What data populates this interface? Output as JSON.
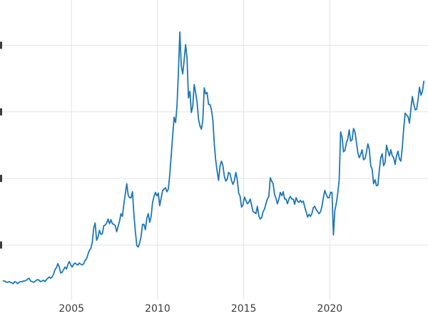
{
  "page": {
    "background": "#ffffff"
  },
  "chart_data": {
    "type": "line",
    "title": "",
    "xlabel": "",
    "ylabel": "",
    "legend": "none",
    "grid": true,
    "grid_color": "#e3e3e3",
    "line_color": "#1f77b4",
    "line_width": 1.8,
    "tick_label_color": "#3c3c3c",
    "xlim": [
      2000.85,
      2025.7
    ],
    "ylim": [
      1.8,
      46.8
    ],
    "x_ticks": [
      2005,
      2010,
      2015,
      2020
    ],
    "x_tick_labels": [
      "2005",
      "2010",
      "2015",
      "2020"
    ],
    "y_ticks": [
      10,
      20,
      30,
      40
    ],
    "y_tick_labels_cropped": true,
    "series": [
      {
        "name": "series",
        "frequency": "monthly",
        "start_year": 2001,
        "points_per_year": 12,
        "values": [
          4.6,
          4.6,
          4.4,
          4.4,
          4.5,
          4.4,
          4.3,
          4.2,
          4.5,
          4.4,
          4.2,
          4.4,
          4.5,
          4.5,
          4.6,
          4.6,
          4.7,
          4.9,
          5.0,
          4.6,
          4.5,
          4.4,
          4.5,
          4.7,
          4.8,
          4.7,
          4.5,
          4.6,
          4.7,
          4.5,
          4.8,
          5.0,
          5.2,
          5.0,
          5.2,
          5.6,
          6.3,
          6.6,
          7.2,
          6.7,
          5.8,
          5.9,
          6.3,
          6.7,
          6.4,
          7.1,
          7.5,
          7.0,
          6.7,
          7.1,
          7.3,
          7.1,
          7.0,
          7.3,
          7.1,
          7.0,
          7.2,
          7.7,
          7.9,
          8.6,
          9.2,
          9.5,
          10.4,
          12.6,
          13.3,
          10.7,
          11.2,
          12.2,
          11.6,
          11.7,
          12.9,
          13.0,
          13.3,
          13.9,
          13.2,
          13.8,
          13.2,
          13.1,
          12.9,
          12.0,
          12.8,
          13.6,
          14.7,
          14.3,
          16.1,
          17.7,
          19.2,
          17.5,
          17.1,
          17.1,
          18.0,
          14.6,
          12.1,
          9.9,
          9.7,
          10.3,
          11.3,
          13.1,
          13.1,
          12.3,
          14.0,
          14.7,
          13.4,
          14.3,
          16.4,
          17.3,
          17.9,
          17.4,
          17.8,
          15.9,
          17.1,
          18.2,
          18.4,
          18.6,
          18.0,
          18.4,
          20.6,
          23.4,
          26.5,
          29.2,
          28.4,
          30.8,
          35.9,
          42.0,
          36.9,
          35.7,
          37.7,
          40.1,
          38.1,
          32.1,
          33.1,
          29.9,
          30.8,
          34.1,
          32.9,
          31.4,
          28.9,
          27.9,
          27.4,
          28.7,
          33.6,
          32.7,
          32.9,
          31.1,
          31.1,
          30.3,
          28.8,
          25.2,
          22.7,
          21.1,
          19.7,
          21.9,
          22.6,
          21.9,
          20.3,
          19.6,
          19.9,
          20.9,
          20.7,
          19.7,
          19.1,
          19.7,
          20.9,
          19.8,
          17.8,
          17.3,
          15.7,
          16.0,
          17.2,
          16.7,
          16.2,
          16.4,
          16.9,
          16.0,
          15.0,
          14.9,
          14.7,
          15.8,
          14.4,
          13.9,
          14.1,
          15.0,
          15.4,
          16.2,
          16.9,
          17.3,
          20.1,
          19.6,
          19.2,
          17.6,
          17.0,
          16.2,
          16.9,
          17.9,
          17.4,
          18.0,
          16.9,
          16.9,
          16.2,
          16.9,
          17.3,
          16.9,
          16.9,
          16.1,
          17.1,
          16.6,
          16.4,
          16.7,
          16.4,
          16.6,
          15.7,
          15.0,
          14.2,
          14.6,
          14.3,
          14.7,
          15.6,
          15.8,
          15.3,
          15.0,
          14.7,
          15.0,
          15.8,
          17.1,
          18.2,
          17.6,
          17.1,
          17.1,
          17.9,
          17.9,
          11.5,
          15.2,
          16.2,
          17.7,
          19.8,
          27.0,
          26.2,
          24.0,
          24.2,
          25.3,
          25.9,
          27.3,
          25.6,
          25.8,
          27.5,
          27.0,
          25.5,
          23.9,
          23.1,
          23.6,
          24.3,
          22.8,
          23.0,
          23.9,
          25.2,
          24.4,
          21.9,
          21.4,
          19.2,
          19.8,
          18.9,
          19.0,
          21.3,
          23.1,
          23.7,
          21.9,
          22.4,
          25.0,
          24.1,
          23.4,
          24.3,
          23.4,
          23.1,
          22.1,
          23.4,
          24.1,
          22.9,
          22.6,
          24.7,
          27.6,
          29.8,
          29.5,
          29.3,
          28.3,
          30.5,
          32.3,
          31.1,
          30.3,
          30.4,
          31.9,
          33.7,
          32.5,
          33.1,
          34.6
        ]
      }
    ]
  }
}
